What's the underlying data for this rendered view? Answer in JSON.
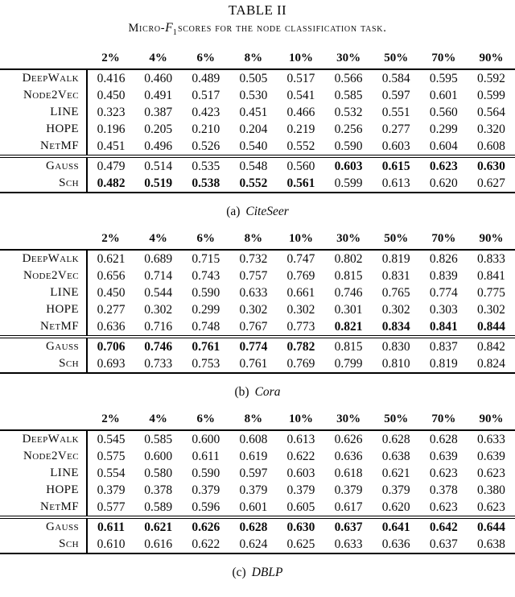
{
  "page": {
    "title": "TABLE II",
    "subtitle": {
      "prefix": "Micro-",
      "math_var": "F",
      "math_sub": "1",
      "suffix": "scores for the node classification task."
    }
  },
  "columns": [
    "2%",
    "4%",
    "6%",
    "8%",
    "10%",
    "30%",
    "50%",
    "70%",
    "90%"
  ],
  "tables": [
    {
      "id": "citeseer",
      "caption_label": "(a)",
      "caption_name": "CiteSeer",
      "rows": [
        {
          "label": "DeepWalk",
          "group": "baseline",
          "values": [
            "0.416",
            "0.460",
            "0.489",
            "0.505",
            "0.517",
            "0.566",
            "0.584",
            "0.595",
            "0.592"
          ],
          "bold": []
        },
        {
          "label": "Node2Vec",
          "group": "baseline",
          "values": [
            "0.450",
            "0.491",
            "0.517",
            "0.530",
            "0.541",
            "0.585",
            "0.597",
            "0.601",
            "0.599"
          ],
          "bold": []
        },
        {
          "label": "LINE",
          "group": "baseline",
          "values": [
            "0.323",
            "0.387",
            "0.423",
            "0.451",
            "0.466",
            "0.532",
            "0.551",
            "0.560",
            "0.564"
          ],
          "bold": []
        },
        {
          "label": "HOPE",
          "group": "baseline",
          "values": [
            "0.196",
            "0.205",
            "0.210",
            "0.204",
            "0.219",
            "0.256",
            "0.277",
            "0.299",
            "0.320"
          ],
          "bold": []
        },
        {
          "label": "NetMF",
          "group": "baseline",
          "values": [
            "0.451",
            "0.496",
            "0.526",
            "0.540",
            "0.552",
            "0.590",
            "0.603",
            "0.604",
            "0.608"
          ],
          "bold": []
        },
        {
          "label": "Gauss",
          "group": "proposed",
          "values": [
            "0.479",
            "0.514",
            "0.535",
            "0.548",
            "0.560",
            "0.603",
            "0.615",
            "0.623",
            "0.630"
          ],
          "bold": [
            5,
            6,
            7,
            8
          ]
        },
        {
          "label": "Sch",
          "group": "proposed",
          "values": [
            "0.482",
            "0.519",
            "0.538",
            "0.552",
            "0.561",
            "0.599",
            "0.613",
            "0.620",
            "0.627"
          ],
          "bold": [
            0,
            1,
            2,
            3,
            4
          ]
        }
      ]
    },
    {
      "id": "cora",
      "caption_label": "(b)",
      "caption_name": "Cora",
      "rows": [
        {
          "label": "DeepWalk",
          "group": "baseline",
          "values": [
            "0.621",
            "0.689",
            "0.715",
            "0.732",
            "0.747",
            "0.802",
            "0.819",
            "0.826",
            "0.833"
          ],
          "bold": []
        },
        {
          "label": "Node2Vec",
          "group": "baseline",
          "values": [
            "0.656",
            "0.714",
            "0.743",
            "0.757",
            "0.769",
            "0.815",
            "0.831",
            "0.839",
            "0.841"
          ],
          "bold": []
        },
        {
          "label": "LINE",
          "group": "baseline",
          "values": [
            "0.450",
            "0.544",
            "0.590",
            "0.633",
            "0.661",
            "0.746",
            "0.765",
            "0.774",
            "0.775"
          ],
          "bold": []
        },
        {
          "label": "HOPE",
          "group": "baseline",
          "values": [
            "0.277",
            "0.302",
            "0.299",
            "0.302",
            "0.302",
            "0.301",
            "0.302",
            "0.303",
            "0.302"
          ],
          "bold": []
        },
        {
          "label": "NetMF",
          "group": "baseline",
          "values": [
            "0.636",
            "0.716",
            "0.748",
            "0.767",
            "0.773",
            "0.821",
            "0.834",
            "0.841",
            "0.844"
          ],
          "bold": [
            5,
            6,
            7,
            8
          ]
        },
        {
          "label": "Gauss",
          "group": "proposed",
          "values": [
            "0.706",
            "0.746",
            "0.761",
            "0.774",
            "0.782",
            "0.815",
            "0.830",
            "0.837",
            "0.842"
          ],
          "bold": [
            0,
            1,
            2,
            3,
            4
          ]
        },
        {
          "label": "Sch",
          "group": "proposed",
          "values": [
            "0.693",
            "0.733",
            "0.753",
            "0.761",
            "0.769",
            "0.799",
            "0.810",
            "0.819",
            "0.824"
          ],
          "bold": []
        }
      ]
    },
    {
      "id": "dblp",
      "caption_label": "(c)",
      "caption_name": "DBLP",
      "rows": [
        {
          "label": "DeepWalk",
          "group": "baseline",
          "values": [
            "0.545",
            "0.585",
            "0.600",
            "0.608",
            "0.613",
            "0.626",
            "0.628",
            "0.628",
            "0.633"
          ],
          "bold": []
        },
        {
          "label": "Node2Vec",
          "group": "baseline",
          "values": [
            "0.575",
            "0.600",
            "0.611",
            "0.619",
            "0.622",
            "0.636",
            "0.638",
            "0.639",
            "0.639"
          ],
          "bold": []
        },
        {
          "label": "LINE",
          "group": "baseline",
          "values": [
            "0.554",
            "0.580",
            "0.590",
            "0.597",
            "0.603",
            "0.618",
            "0.621",
            "0.623",
            "0.623"
          ],
          "bold": []
        },
        {
          "label": "HOPE",
          "group": "baseline",
          "values": [
            "0.379",
            "0.378",
            "0.379",
            "0.379",
            "0.379",
            "0.379",
            "0.379",
            "0.378",
            "0.380"
          ],
          "bold": []
        },
        {
          "label": "NetMF",
          "group": "baseline",
          "values": [
            "0.577",
            "0.589",
            "0.596",
            "0.601",
            "0.605",
            "0.617",
            "0.620",
            "0.623",
            "0.623"
          ],
          "bold": []
        },
        {
          "label": "Gauss",
          "group": "proposed",
          "values": [
            "0.611",
            "0.621",
            "0.626",
            "0.628",
            "0.630",
            "0.637",
            "0.641",
            "0.642",
            "0.644"
          ],
          "bold": [
            0,
            1,
            2,
            3,
            4,
            5,
            6,
            7,
            8
          ]
        },
        {
          "label": "Sch",
          "group": "proposed",
          "values": [
            "0.610",
            "0.616",
            "0.622",
            "0.624",
            "0.625",
            "0.633",
            "0.636",
            "0.637",
            "0.638"
          ],
          "bold": []
        }
      ]
    }
  ]
}
